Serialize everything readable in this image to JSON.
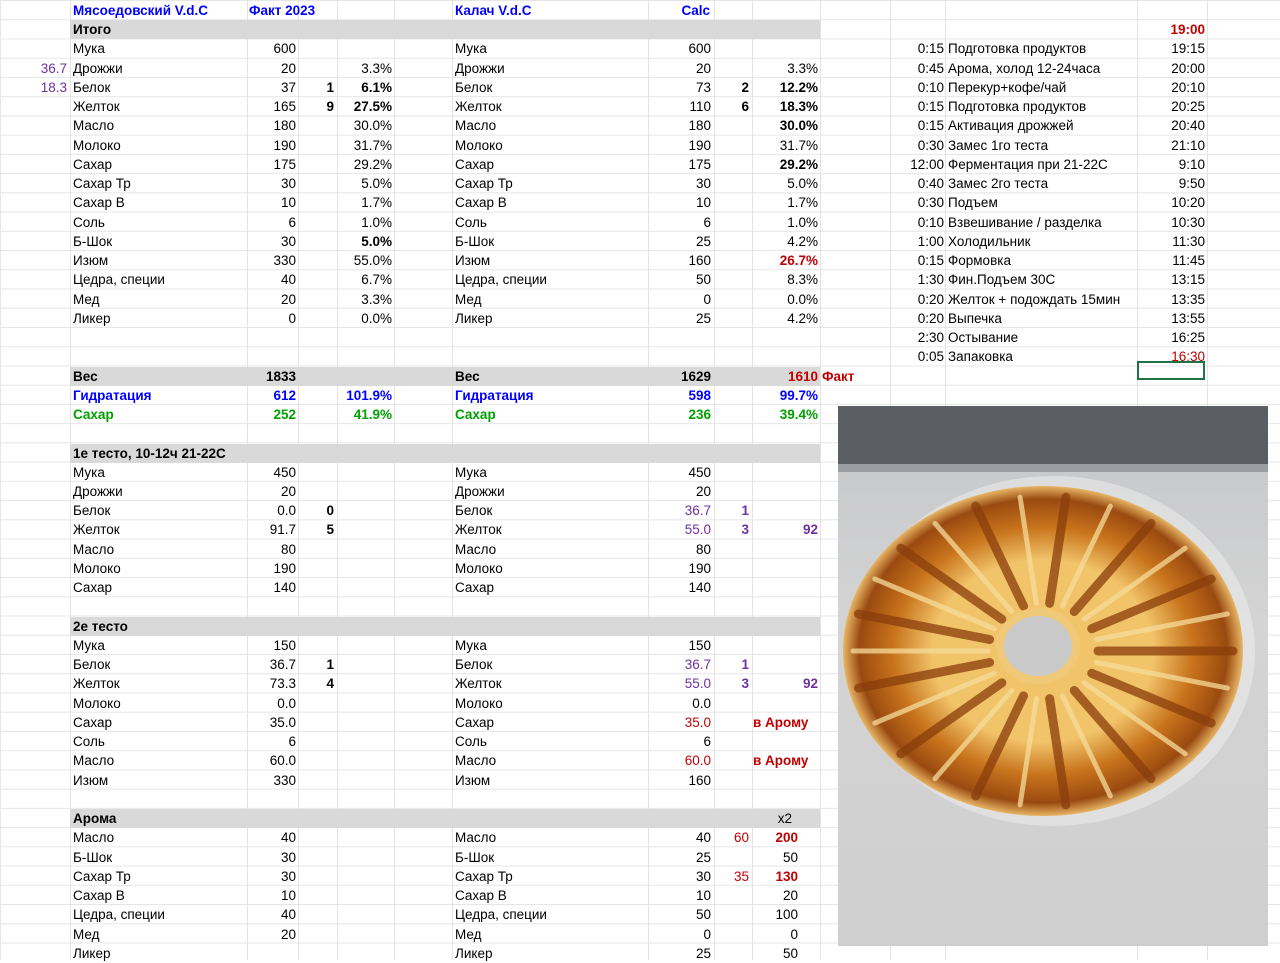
{
  "header": {
    "left_title": "Мясоедовский V.d.C",
    "left_col": "Факт 2023",
    "right_title": "Калач V.d.C",
    "right_col": "Calc"
  },
  "side_values": {
    "belok": "36.7",
    "zheltok": "18.3"
  },
  "itogo": {
    "title": "Итого",
    "left": [
      [
        "Мука",
        "600",
        "",
        ""
      ],
      [
        "Дрожжи",
        "20",
        "",
        "3.3%"
      ],
      [
        "Белок",
        "37",
        "1",
        "6.1%"
      ],
      [
        "Желток",
        "165",
        "9",
        "27.5%"
      ],
      [
        "Масло",
        "180",
        "",
        "30.0%"
      ],
      [
        "Молоко",
        "190",
        "",
        "31.7%"
      ],
      [
        "Сахар",
        "175",
        "",
        "29.2%"
      ],
      [
        "Сахар Тр",
        "30",
        "",
        "5.0%"
      ],
      [
        "Сахар В",
        "10",
        "",
        "1.7%"
      ],
      [
        "Соль",
        "6",
        "",
        "1.0%"
      ],
      [
        "Б-Шок",
        "30",
        "",
        "5.0%"
      ],
      [
        "Изюм",
        "330",
        "",
        "55.0%"
      ],
      [
        "Цедра, специи",
        "40",
        "",
        "6.7%"
      ],
      [
        "Мед",
        "20",
        "",
        "3.3%"
      ],
      [
        "Ликер",
        "0",
        "",
        "0.0%"
      ]
    ],
    "right": [
      [
        "Мука",
        "600",
        "",
        ""
      ],
      [
        "Дрожжи",
        "20",
        "",
        "3.3%"
      ],
      [
        "Белок",
        "73",
        "2",
        "12.2%"
      ],
      [
        "Желток",
        "110",
        "6",
        "18.3%"
      ],
      [
        "Масло",
        "180",
        "",
        "30.0%"
      ],
      [
        "Молоко",
        "190",
        "",
        "31.7%"
      ],
      [
        "Сахар",
        "175",
        "",
        "29.2%"
      ],
      [
        "Сахар Тр",
        "30",
        "",
        "5.0%"
      ],
      [
        "Сахар В",
        "10",
        "",
        "1.7%"
      ],
      [
        "Соль",
        "6",
        "",
        "1.0%"
      ],
      [
        "Б-Шок",
        "25",
        "",
        "4.2%"
      ],
      [
        "Изюм",
        "160",
        "",
        "26.7%"
      ],
      [
        "Цедра, специи",
        "50",
        "",
        "8.3%"
      ],
      [
        "Мед",
        "0",
        "",
        "0.0%"
      ],
      [
        "Ликер",
        "25",
        "",
        "4.2%"
      ]
    ]
  },
  "totals": {
    "left": {
      "ves_label": "Вес",
      "ves": "1833",
      "hyd_label": "Гидратация",
      "hyd": "612",
      "hyd_pct": "101.9%",
      "sug_label": "Сахар",
      "sug": "252",
      "sug_pct": "41.9%"
    },
    "right": {
      "ves_label": "Вес",
      "ves": "1629",
      "fact_val": "1610",
      "fact_label": "Факт",
      "hyd_label": "Гидратация",
      "hyd": "598",
      "hyd_pct": "99.7%",
      "sug_label": "Сахар",
      "sug": "236",
      "sug_pct": "39.4%"
    }
  },
  "dough1": {
    "title": "1е тесто, 10-12ч 21-22С",
    "left": [
      [
        "Мука",
        "450",
        ""
      ],
      [
        "Дрожжи",
        "20",
        ""
      ],
      [
        "Белок",
        "0.0",
        "0"
      ],
      [
        "Желток",
        "91.7",
        "5"
      ],
      [
        "Масло",
        "80",
        ""
      ],
      [
        "Молоко",
        "190",
        ""
      ],
      [
        "Сахар",
        "140",
        ""
      ]
    ],
    "right": [
      [
        "Мука",
        "450",
        "",
        ""
      ],
      [
        "Дрожжи",
        "20",
        "",
        ""
      ],
      [
        "Белок",
        "36.7",
        "1",
        ""
      ],
      [
        "Желток",
        "55.0",
        "3",
        "92"
      ],
      [
        "Масло",
        "80",
        "",
        ""
      ],
      [
        "Молоко",
        "190",
        "",
        ""
      ],
      [
        "Сахар",
        "140",
        "",
        ""
      ]
    ]
  },
  "dough2": {
    "title": "2е тесто",
    "left": [
      [
        "Мука",
        "150",
        ""
      ],
      [
        "Белок",
        "36.7",
        "1"
      ],
      [
        "Желток",
        "73.3",
        "4"
      ],
      [
        "Молоко",
        "0.0",
        ""
      ],
      [
        "Сахар",
        "35.0",
        ""
      ],
      [
        "Соль",
        "6",
        ""
      ],
      [
        "Масло",
        "60.0",
        ""
      ],
      [
        "Изюм",
        "330",
        ""
      ]
    ],
    "right": [
      [
        "Мука",
        "150",
        "",
        ""
      ],
      [
        "Белок",
        "36.7",
        "1",
        ""
      ],
      [
        "Желток",
        "55.0",
        "3",
        "92"
      ],
      [
        "Молоко",
        "0.0",
        "",
        ""
      ],
      [
        "Сахар",
        "35.0",
        "",
        "в Арому"
      ],
      [
        "Соль",
        "6",
        "",
        ""
      ],
      [
        "Масло",
        "60.0",
        "",
        "в Арому"
      ],
      [
        "Изюм",
        "160",
        "",
        ""
      ]
    ]
  },
  "aroma": {
    "title": "Арома",
    "x2": "x2",
    "left": [
      [
        "Масло",
        "40"
      ],
      [
        "Б-Шок",
        "30"
      ],
      [
        "Сахар Тр",
        "30"
      ],
      [
        "Сахар В",
        "10"
      ],
      [
        "Цедра, специи",
        "40"
      ],
      [
        "Мед",
        "20"
      ],
      [
        "Ликер",
        ""
      ]
    ],
    "right": [
      [
        "Масло",
        "40",
        "60",
        "200"
      ],
      [
        "Б-Шок",
        "25",
        "",
        "50"
      ],
      [
        "Сахар Тр",
        "30",
        "35",
        "130"
      ],
      [
        "Сахар В",
        "10",
        "",
        "20"
      ],
      [
        "Цедра, специи",
        "50",
        "",
        "100"
      ],
      [
        "Мед",
        "0",
        "",
        "0"
      ],
      [
        "Ликер",
        "25",
        "",
        "50"
      ]
    ]
  },
  "schedule": {
    "start": "19:00",
    "rows": [
      [
        "0:15",
        "Подготовка продуктов",
        "19:15"
      ],
      [
        "0:45",
        "Арома, холод 12-24часа",
        "20:00"
      ],
      [
        "0:10",
        "Перекур+кофе/чай",
        "20:10"
      ],
      [
        "0:15",
        "Подготовка продуктов",
        "20:25"
      ],
      [
        "0:15",
        "Активация дрожжей",
        "20:40"
      ],
      [
        "0:30",
        "Замес 1го теста",
        "21:10"
      ],
      [
        "12:00",
        "Ферментация при 21-22С",
        "9:10"
      ],
      [
        "0:40",
        "Замес 2го теста",
        "9:50"
      ],
      [
        "0:30",
        "Подъем",
        "10:20"
      ],
      [
        "0:10",
        "Взвешивание / разделка",
        "10:30"
      ],
      [
        "1:00",
        "Холодильник",
        "11:30"
      ],
      [
        "0:15",
        "Формовка",
        "11:45"
      ],
      [
        "1:30",
        "Фин.Подъем 30С",
        "13:15"
      ],
      [
        "0:20",
        "Желток + подождать 15мин",
        "13:35"
      ],
      [
        "0:20",
        "Выпечка",
        "13:55"
      ],
      [
        "2:30",
        "Остывание",
        "16:25"
      ],
      [
        "0:05",
        "Запаковка",
        "16:30"
      ]
    ]
  },
  "photo": {
    "subject": "baked-wreath-bread-photo"
  }
}
